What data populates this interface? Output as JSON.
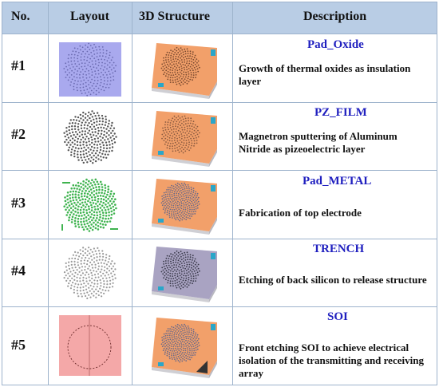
{
  "header": {
    "no": "No.",
    "layout": "Layout",
    "structure": "3D Structure",
    "description": "Description"
  },
  "rows": [
    {
      "num": "#1",
      "title": "Pad_Oxide",
      "desc": "Growth of thermal oxides as insulation layer"
    },
    {
      "num": "#2",
      "title": "PZ_FILM",
      "desc": "Magnetron sputtering of Aluminum Nitride as pizeoelectric layer"
    },
    {
      "num": "#3",
      "title": "Pad_METAL",
      "desc": "Fabrication of top electrode"
    },
    {
      "num": "#4",
      "title": "TRENCH",
      "desc": "Etching of back silicon to release structure"
    },
    {
      "num": "#5",
      "title": "SOI",
      "desc": "Front etching SOI to achieve electrical isolation of the transmitting and receiving array"
    }
  ],
  "colors": {
    "header_bg": "#b9cde5",
    "title_blue": "#1f1fbf",
    "oxide_layout": "#a9a9ee",
    "metal_green": "#3fb34f",
    "soi_pink": "#f4a8a8",
    "wafer_orange": "#f2a06a",
    "wafer_purple": "#a9a3c2",
    "pad_cyan": "#2aa6c9"
  }
}
